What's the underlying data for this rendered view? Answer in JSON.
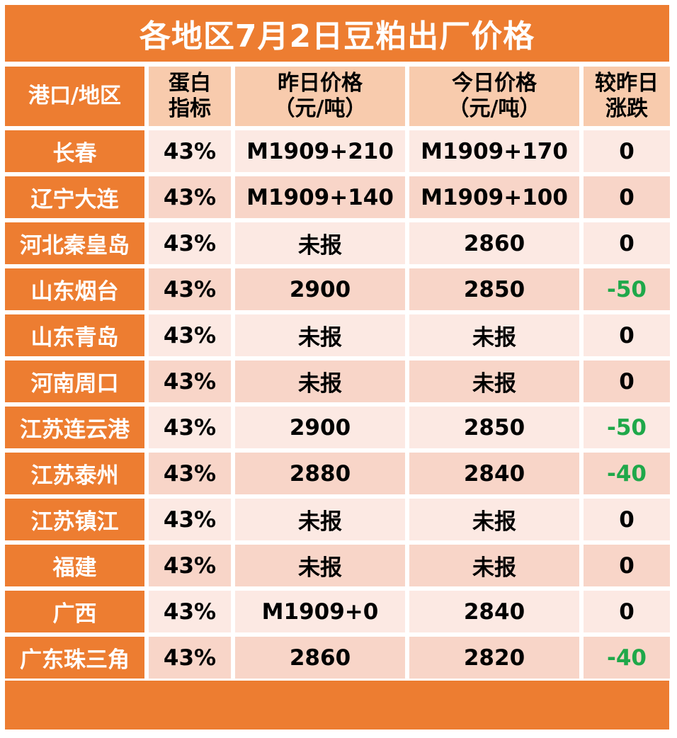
{
  "title": "各地区7月2日豆粕出厂价格",
  "headers": {
    "region": "港口/地区",
    "protein_1": "蛋白",
    "protein_2": "指标",
    "yesterday_1": "昨日价格",
    "yesterday_2": "（元/吨）",
    "today_1": "今日价格",
    "today_2": "（元/吨）",
    "change_1": "较昨日",
    "change_2": "涨跌"
  },
  "rows": [
    {
      "region": "长春",
      "protein": "43%",
      "yesterday": "M1909+210",
      "today": "M1909+170",
      "change": "0"
    },
    {
      "region": "辽宁大连",
      "protein": "43%",
      "yesterday": "M1909+140",
      "today": "M1909+100",
      "change": "0"
    },
    {
      "region": "河北秦皇岛",
      "protein": "43%",
      "yesterday": "未报",
      "today": "2860",
      "change": "0"
    },
    {
      "region": "山东烟台",
      "protein": "43%",
      "yesterday": "2900",
      "today": "2850",
      "change": "-50"
    },
    {
      "region": "山东青岛",
      "protein": "43%",
      "yesterday": "未报",
      "today": "未报",
      "change": "0"
    },
    {
      "region": "河南周口",
      "protein": "43%",
      "yesterday": "未报",
      "today": "未报",
      "change": "0"
    },
    {
      "region": "江苏连云港",
      "protein": "43%",
      "yesterday": "2900",
      "today": "2850",
      "change": "-50"
    },
    {
      "region": "江苏泰州",
      "protein": "43%",
      "yesterday": "2880",
      "today": "2840",
      "change": "-40"
    },
    {
      "region": "江苏镇江",
      "protein": "43%",
      "yesterday": "未报",
      "today": "未报",
      "change": "0"
    },
    {
      "region": "福建",
      "protein": "43%",
      "yesterday": "未报",
      "today": "未报",
      "change": "0"
    },
    {
      "region": "广西",
      "protein": "43%",
      "yesterday": "M1909+0",
      "today": "2840",
      "change": "0"
    },
    {
      "region": "广东珠三角",
      "protein": "43%",
      "yesterday": "2860",
      "today": "2820",
      "change": "-40"
    }
  ],
  "colors": {
    "accent": "#ED7D31",
    "row_light": "#FCE9E3",
    "row_dark": "#F8D5C8",
    "negative": "#1FA84A"
  }
}
